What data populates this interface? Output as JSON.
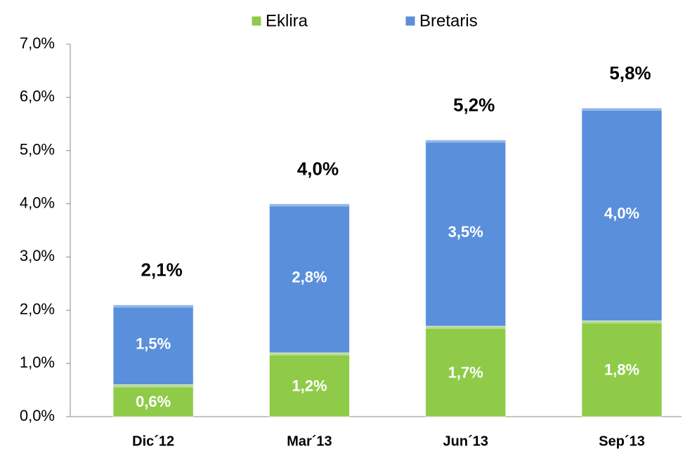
{
  "chart_data": {
    "type": "stacked_bar",
    "categories": [
      "Dic´12",
      "Mar´13",
      "Jun´13",
      "Sep´13"
    ],
    "series": [
      {
        "name": "Eklira",
        "color": "#8fcb48",
        "values": [
          0.6,
          1.2,
          1.7,
          1.8
        ],
        "value_labels": [
          "0,6%",
          "1,2%",
          "1,7%",
          "1,8%"
        ]
      },
      {
        "name": "Bretaris",
        "color": "#5a8fdc",
        "values": [
          1.5,
          2.8,
          3.5,
          4.0
        ],
        "value_labels": [
          "1,5%",
          "2,8%",
          "3,5%",
          "4,0%"
        ]
      }
    ],
    "totals": [
      2.1,
      4.0,
      5.2,
      5.8
    ],
    "total_labels": [
      "2,1%",
      "4,0%",
      "5,2%",
      "5,8%"
    ],
    "ylim": [
      0,
      7
    ],
    "yticks": [
      {
        "value": 0,
        "label": "0,0%"
      },
      {
        "value": 1,
        "label": "1,0%"
      },
      {
        "value": 2,
        "label": "2,0%"
      },
      {
        "value": 3,
        "label": "3,0%"
      },
      {
        "value": 4,
        "label": "4,0%"
      },
      {
        "value": 5,
        "label": "5,0%"
      },
      {
        "value": 6,
        "label": "6,0%"
      },
      {
        "value": 7,
        "label": "7,0%"
      }
    ],
    "grid": false,
    "legend": "top"
  }
}
